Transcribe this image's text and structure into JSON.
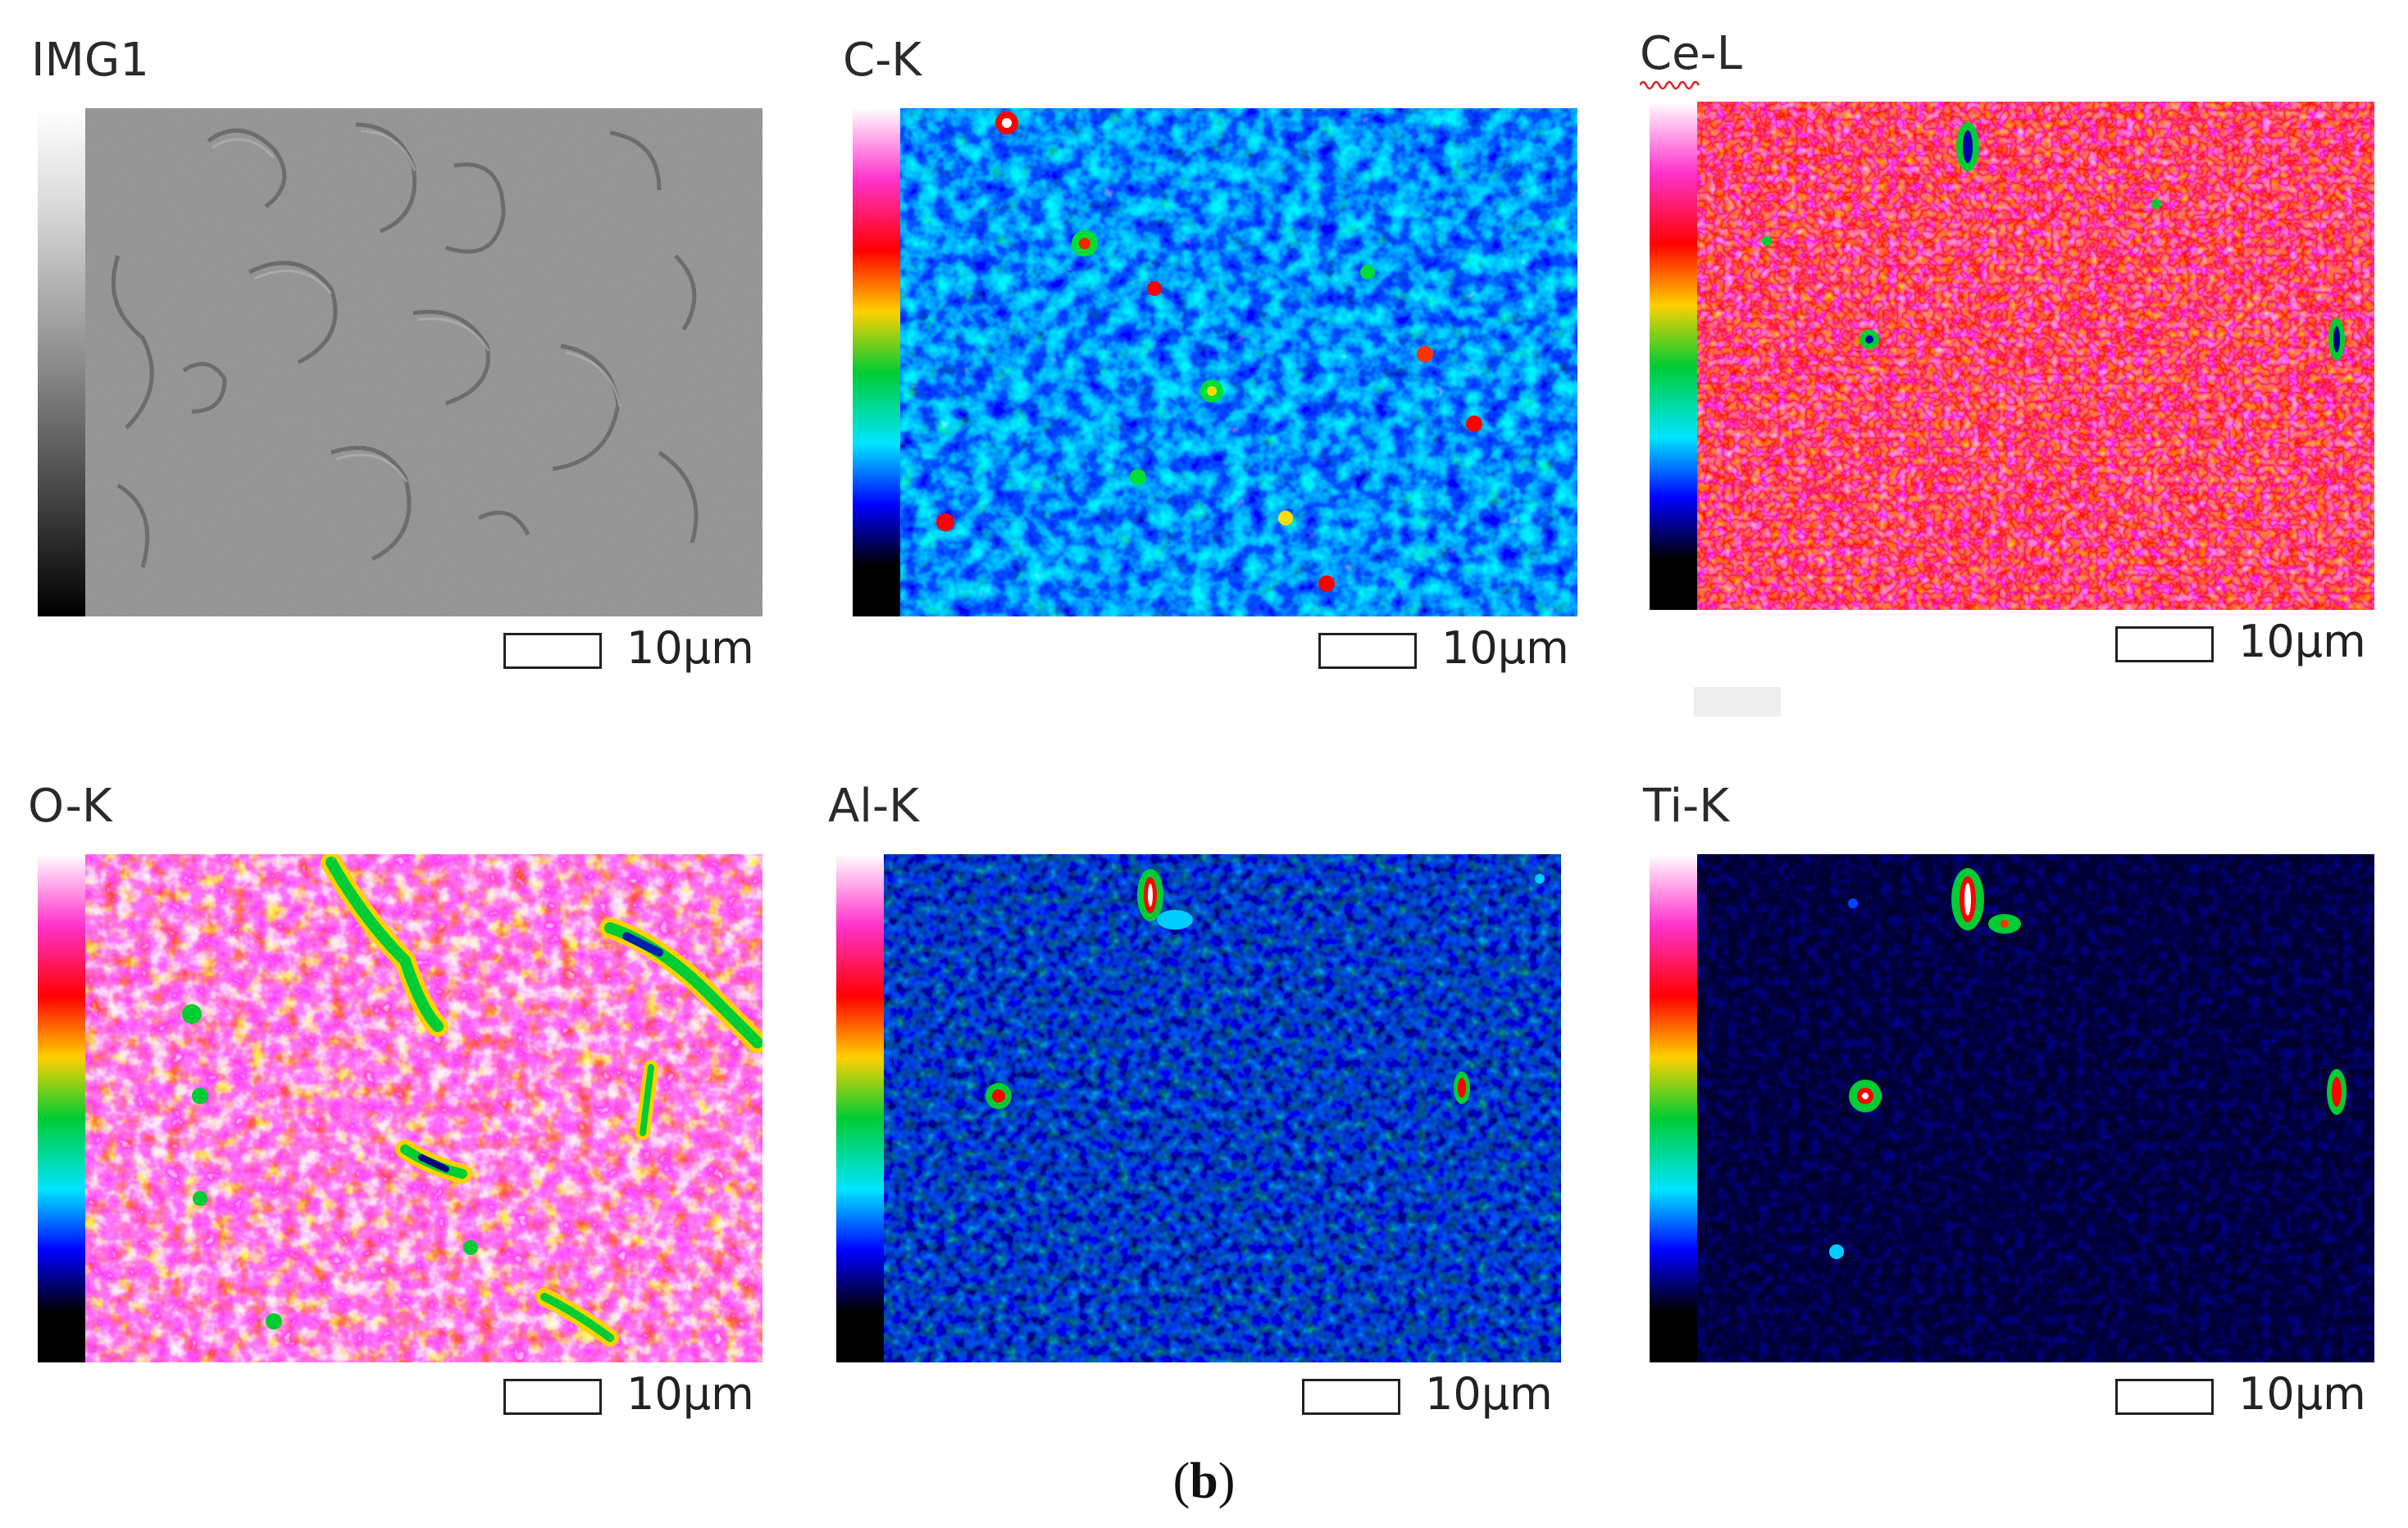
{
  "figure": {
    "caption_prefix": "(",
    "caption_letter": "b",
    "caption_suffix": ")"
  },
  "panels": [
    {
      "label": "IMG1",
      "scale": "10μm",
      "colormap": "gray",
      "dominant": "gray"
    },
    {
      "label": "C-K",
      "scale": "10μm",
      "colormap": "spectrum",
      "dominant": "blue"
    },
    {
      "label": "Ce-L",
      "scale": "10μm",
      "colormap": "spectrum",
      "dominant": "red-magenta"
    },
    {
      "label": "O-K",
      "scale": "10μm",
      "colormap": "spectrum",
      "dominant": "magenta-white"
    },
    {
      "label": "Al-K",
      "scale": "10μm",
      "colormap": "spectrum",
      "dominant": "dark-blue"
    },
    {
      "label": "Ti-K",
      "scale": "10μm",
      "colormap": "spectrum",
      "dominant": "black"
    }
  ],
  "colors": {
    "spectrum_top": "#ffffff",
    "spectrum_magenta": "#ff33cc",
    "spectrum_red": "#ff0000",
    "spectrum_yellow": "#ffd000",
    "spectrum_green": "#00cc33",
    "spectrum_cyan": "#00e5ff",
    "spectrum_blue": "#0000ff",
    "spectrum_bottom": "#000000"
  }
}
